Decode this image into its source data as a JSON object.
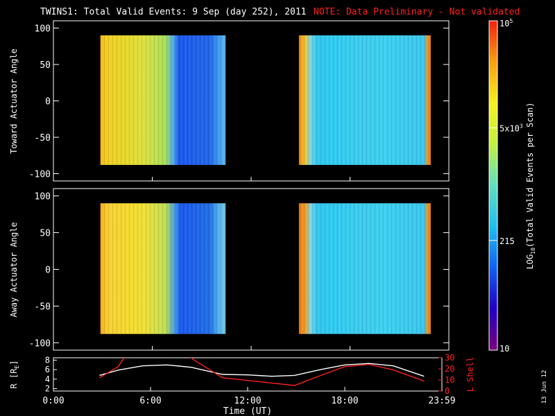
{
  "header": {
    "title": "TWINS1: Total Valid Events:  9 Sep (day 252), 2011",
    "note": "NOTE: Data Preliminary - Not validated"
  },
  "colors": {
    "note": "#ff2020",
    "lshell": "#ff2020",
    "rline": "#ffffff",
    "background": "#000000"
  },
  "footer": {
    "date_stamp": "13 Jun 12"
  },
  "chart_data": [
    {
      "type": "heatmap",
      "ylabel": "Toward Actuator Angle",
      "ylim": [
        -110,
        110
      ],
      "yticks": [
        100,
        50,
        0,
        -50,
        -100
      ],
      "xlim": [
        0,
        24
      ],
      "blocks": [
        {
          "x_start": 2.85,
          "x_end": 10.45,
          "y_start": -88,
          "y_end": 90,
          "profile": [
            [
              2.85,
              "#f8b818"
            ],
            [
              3.3,
              "#f0d020"
            ],
            [
              5.5,
              "#dce040"
            ],
            [
              6.8,
              "#a8e058"
            ],
            [
              7.3,
              "#4aa8f0"
            ],
            [
              7.6,
              "#1e58e8"
            ],
            [
              9.5,
              "#2068ec"
            ],
            [
              10.0,
              "#3c98f0"
            ],
            [
              10.45,
              "#60b8e8"
            ]
          ]
        },
        {
          "x_start": 14.9,
          "x_end": 22.9,
          "y_start": -88,
          "y_end": 90,
          "profile": [
            [
              14.9,
              "#f08818"
            ],
            [
              15.3,
              "#f0c830"
            ],
            [
              15.6,
              "#78d8e8"
            ],
            [
              16.0,
              "#30c8f0"
            ],
            [
              20,
              "#40d0f0"
            ],
            [
              22.5,
              "#38c8f0"
            ],
            [
              22.7,
              "#f09020"
            ],
            [
              22.9,
              "#f08818"
            ]
          ]
        }
      ]
    },
    {
      "type": "heatmap",
      "ylabel": "Away Actuator Angle",
      "ylim": [
        -110,
        110
      ],
      "yticks": [
        100,
        50,
        0,
        -50,
        -100
      ],
      "xlim": [
        0,
        24
      ],
      "blocks": [
        {
          "x_start": 2.85,
          "x_end": 10.45,
          "y_start": -88,
          "y_end": 90,
          "profile": [
            [
              2.85,
              "#f8a818"
            ],
            [
              3.3,
              "#f8d030"
            ],
            [
              5.5,
              "#f0e038"
            ],
            [
              6.8,
              "#c0e050"
            ],
            [
              7.4,
              "#3c98f0"
            ],
            [
              7.7,
              "#1e58e8"
            ],
            [
              9.5,
              "#2070ec"
            ],
            [
              10.0,
              "#50b0f0"
            ],
            [
              10.45,
              "#78c8e0"
            ]
          ]
        },
        {
          "x_start": 14.9,
          "x_end": 22.9,
          "y_start": -88,
          "y_end": 90,
          "profile": [
            [
              14.9,
              "#f07818"
            ],
            [
              15.3,
              "#f0a020"
            ],
            [
              15.6,
              "#80d8e8"
            ],
            [
              16.0,
              "#30c8f0"
            ],
            [
              20,
              "#40d0f0"
            ],
            [
              22.5,
              "#38c8f0"
            ],
            [
              22.7,
              "#f09020"
            ],
            [
              22.9,
              "#f08818"
            ]
          ]
        }
      ]
    },
    {
      "type": "line",
      "ylabel": "R [R",
      "ylabel_sub": "E",
      "ylabel_end": "]",
      "y2label": "L Shell",
      "ylim": [
        1.5,
        8.5
      ],
      "yticks": [
        2,
        4,
        6,
        8
      ],
      "y2lim": [
        0,
        30
      ],
      "y2ticks": [
        0,
        10,
        20,
        30
      ],
      "xlim": [
        0,
        24
      ],
      "xticks": [
        0,
        6,
        12,
        18,
        24
      ],
      "xtick_labels": [
        "0:00",
        "6:00",
        "12:00",
        "18:00",
        "23:59"
      ],
      "xlabel": "Time (UT)",
      "series": [
        {
          "axis": "left",
          "color": "#ffffff",
          "x": [
            2.85,
            4.0,
            5.5,
            7.0,
            8.5,
            10.45,
            12.0,
            13.5,
            14.9,
            16.5,
            18.0,
            19.5,
            21.0,
            22.9
          ],
          "y": [
            4.8,
            5.9,
            6.8,
            7.0,
            6.5,
            5.0,
            4.9,
            4.6,
            4.8,
            6.0,
            7.0,
            7.3,
            6.8,
            4.6
          ]
        },
        {
          "axis": "right",
          "color": "#ff2020",
          "x": [
            2.85,
            4.0,
            4.5,
            8.2,
            8.8,
            10.45,
            14.9,
            16.5,
            18.0,
            19.5,
            21.0,
            22.9
          ],
          "y": [
            12,
            22,
            33,
            33,
            27,
            12,
            5,
            14,
            22,
            24,
            19,
            9
          ]
        }
      ]
    }
  ],
  "colorbar": {
    "label_main": "LOG",
    "label_sub": "10",
    "label_rest": "(Total Valid Events per Scan)",
    "ticks": [
      {
        "value": 100000,
        "text": "10",
        "sup": "5"
      },
      {
        "value": 5000,
        "text": "5x10",
        "sup": "3"
      },
      {
        "value": 215,
        "text": "215",
        "sup": ""
      },
      {
        "value": 10,
        "text": "10",
        "sup": ""
      }
    ],
    "range": [
      10,
      100000
    ],
    "stops": [
      "#7a0080",
      "#2000c0",
      "#1060f0",
      "#20c0f0",
      "#60e0c0",
      "#c0f040",
      "#f8f020",
      "#f8a010",
      "#f02010"
    ]
  }
}
